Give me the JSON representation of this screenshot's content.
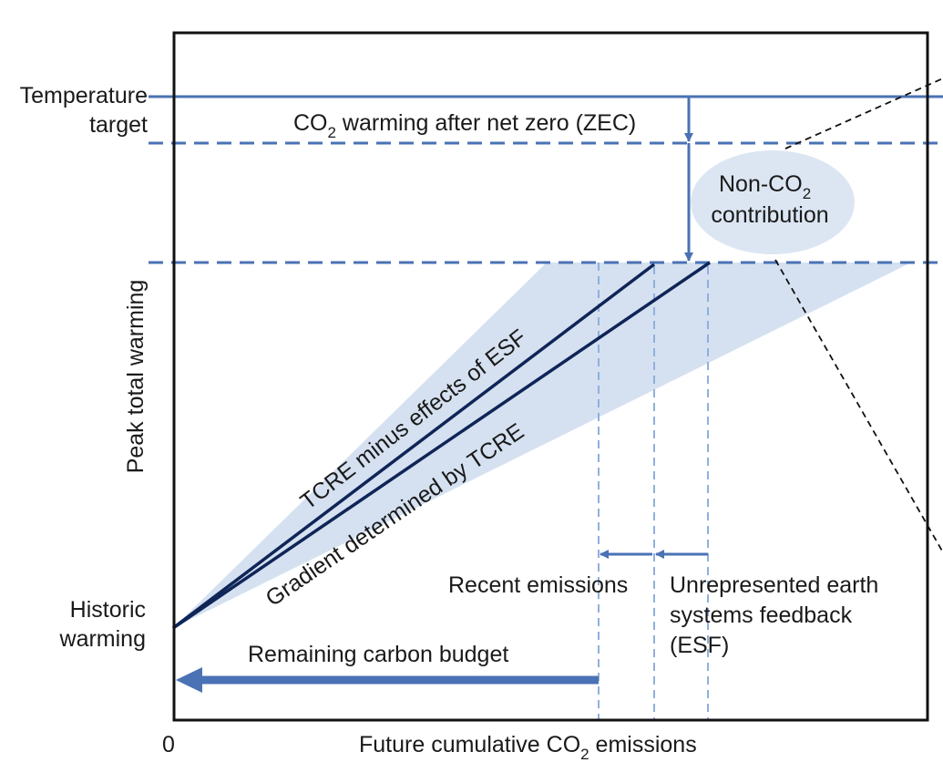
{
  "labels": {
    "temperature_target_line1": "Temperature",
    "temperature_target_line2": "target",
    "historic_warming_line1": "Historic",
    "historic_warming_line2": "warming",
    "y_axis": "Peak total warming",
    "x_axis_origin": "0",
    "x_axis_prefix": "Future cumulative CO",
    "x_axis_sub": "2",
    "x_axis_suffix": " emissions",
    "zec_prefix": "CO",
    "zec_sub": "2",
    "zec_suffix": " warming after net zero (ZEC)",
    "nonco2_line1_prefix": "Non-CO",
    "nonco2_line1_sub": "2",
    "nonco2_line2": "contribution",
    "tcre_minus_esf": "TCRE minus effects of ESF",
    "gradient_tcre": "Gradient determined by TCRE",
    "recent_emissions": "Recent emissions",
    "esf_line1": "Unrepresented earth",
    "esf_line2": "systems feedback",
    "esf_line3": "(ESF)",
    "remaining_budget": "Remaining carbon budget"
  },
  "colors": {
    "frame": "#111111",
    "blue_line": "#4a72b4",
    "dashed_blue": "#8fb0dc",
    "navy": "#0f2557",
    "cone_fill": "#d5e1f1",
    "ellipse_fill": "#dce6f3"
  }
}
